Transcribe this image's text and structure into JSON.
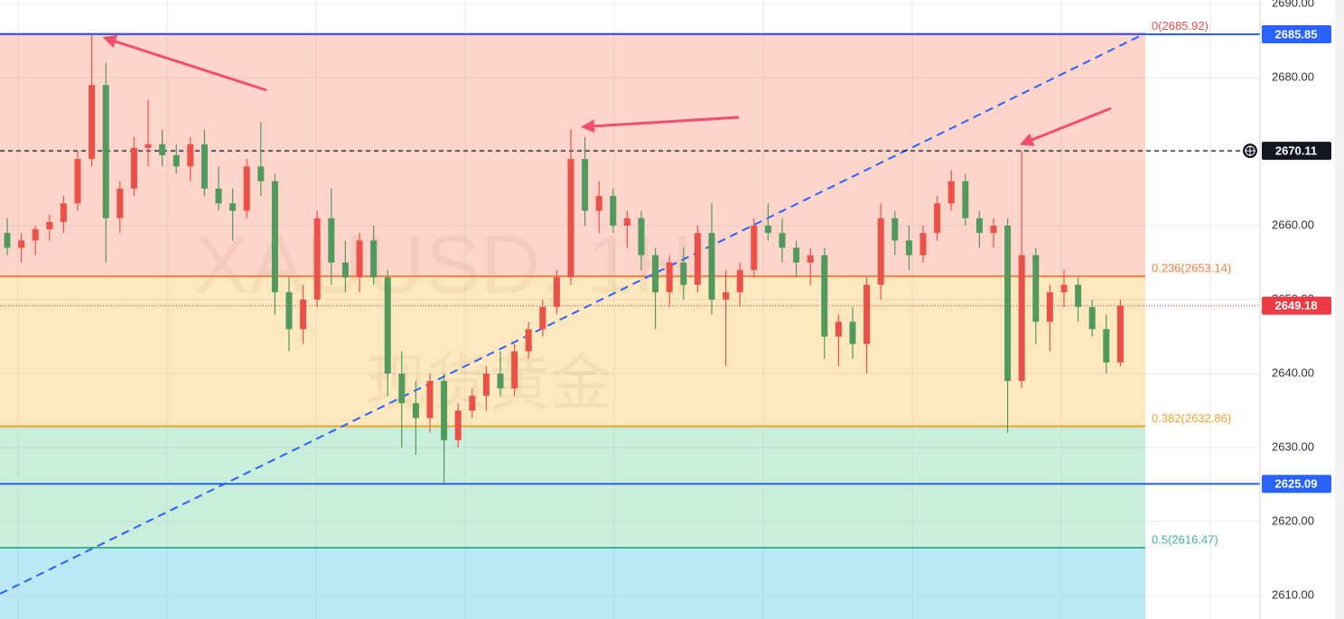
{
  "chart_data": {
    "type": "candlestick",
    "title": "XAUUSD, 1H",
    "subtitle": "现货黄金",
    "up_color": "#ec5147",
    "down_color": "#4f9a5c",
    "ylim": [
      2606.83,
      2690.49
    ],
    "yticks": [
      {
        "value": 2690,
        "label": "2690.00"
      },
      {
        "value": 2680,
        "label": "2680.00"
      },
      {
        "value": 2670,
        "label": "2670.00"
      },
      {
        "value": 2660,
        "label": "2660.00"
      },
      {
        "value": 2650,
        "label": "2650.00"
      },
      {
        "value": 2640,
        "label": "2640.00"
      },
      {
        "value": 2630,
        "label": "2630.00"
      },
      {
        "value": 2620,
        "label": "2620.00"
      },
      {
        "value": 2610,
        "label": "2610.00"
      }
    ],
    "grid": true,
    "fib_levels": [
      {
        "value": 2685.92,
        "label": "0(2685.92)",
        "color": "#e84c4c",
        "fill": "#fdd5cb"
      },
      {
        "value": 2653.14,
        "label": "0.236(2653.14)",
        "color": "#f07f3c",
        "fill": "#fee8bf"
      },
      {
        "value": 2632.86,
        "label": "0.382(2632.86)",
        "color": "#eaa52a",
        "fill": "#c9eedb"
      },
      {
        "value": 2616.47,
        "label": "0.5(2616.47)",
        "color": "#3fb58a",
        "fill": "#bae9f5"
      }
    ],
    "price_lines": [
      {
        "value": 2685.85,
        "color": "#2962ff",
        "style": "solid"
      },
      {
        "value": 2670.11,
        "color": "#131722",
        "style": "dashed"
      },
      {
        "value": 2625.09,
        "color": "#2962ff",
        "style": "solid"
      }
    ],
    "last_price": {
      "value": 2649.18,
      "color": "#ec3b45"
    },
    "trendline": {
      "values": [
        2610.24,
        2685.98
      ],
      "color": "#2962ff"
    },
    "candles": [
      [
        2659,
        2661,
        2656,
        2657
      ],
      [
        2657,
        2659,
        2655,
        2658
      ],
      [
        2658,
        2660,
        2656,
        2659.5
      ],
      [
        2659.5,
        2661.5,
        2658,
        2660.5
      ],
      [
        2660.5,
        2664,
        2659,
        2663
      ],
      [
        2663,
        2670,
        2662,
        2669
      ],
      [
        2669,
        2685.7,
        2668,
        2679
      ],
      [
        2679,
        2682,
        2655,
        2661
      ],
      [
        2661,
        2666,
        2659,
        2665
      ],
      [
        2665,
        2672,
        2664,
        2670.5
      ],
      [
        2670.5,
        2677,
        2668,
        2671
      ],
      [
        2671,
        2673,
        2668,
        2669.5
      ],
      [
        2669.5,
        2671,
        2667,
        2668
      ],
      [
        2668,
        2672,
        2666,
        2671
      ],
      [
        2671,
        2673,
        2664,
        2665
      ],
      [
        2665,
        2668,
        2662,
        2663
      ],
      [
        2663,
        2665,
        2658,
        2662
      ],
      [
        2662,
        2669,
        2661,
        2668
      ],
      [
        2668,
        2674,
        2664,
        2666
      ],
      [
        2666,
        2667,
        2648,
        2651
      ],
      [
        2651,
        2653,
        2643,
        2646
      ],
      [
        2646,
        2652,
        2644,
        2650
      ],
      [
        2650,
        2662,
        2649,
        2661
      ],
      [
        2661,
        2665,
        2652,
        2655
      ],
      [
        2655,
        2658,
        2651,
        2653
      ],
      [
        2653,
        2659,
        2651,
        2658
      ],
      [
        2658,
        2660,
        2652,
        2653
      ],
      [
        2653,
        2654,
        2637,
        2640
      ],
      [
        2640,
        2643,
        2630,
        2636
      ],
      [
        2636,
        2639,
        2629,
        2634
      ],
      [
        2634,
        2640,
        2632,
        2639
      ],
      [
        2639,
        2640,
        2625.2,
        2631
      ],
      [
        2631,
        2636,
        2630,
        2635
      ],
      [
        2635,
        2638,
        2634,
        2637
      ],
      [
        2637,
        2641,
        2635,
        2640
      ],
      [
        2640,
        2643,
        2637,
        2638
      ],
      [
        2638,
        2644,
        2637,
        2643
      ],
      [
        2643,
        2647,
        2642,
        2646
      ],
      [
        2646,
        2650,
        2645,
        2649
      ],
      [
        2649,
        2654,
        2648,
        2653
      ],
      [
        2653,
        2673,
        2652,
        2669
      ],
      [
        2669,
        2672,
        2660,
        2662
      ],
      [
        2662,
        2666,
        2659,
        2664
      ],
      [
        2664,
        2665,
        2659,
        2660
      ],
      [
        2660,
        2662,
        2657,
        2661
      ],
      [
        2661,
        2662,
        2654,
        2656
      ],
      [
        2656,
        2657,
        2646,
        2651
      ],
      [
        2651,
        2656,
        2649,
        2655
      ],
      [
        2655,
        2657,
        2650,
        2652
      ],
      [
        2652,
        2660,
        2651,
        2659
      ],
      [
        2659,
        2663,
        2648,
        2650
      ],
      [
        2650,
        2654,
        2641,
        2651
      ],
      [
        2651,
        2655,
        2649,
        2654
      ],
      [
        2654,
        2661,
        2653,
        2660
      ],
      [
        2660,
        2663,
        2658,
        2659
      ],
      [
        2659,
        2661,
        2655,
        2657
      ],
      [
        2657,
        2658,
        2653,
        2655
      ],
      [
        2655,
        2657,
        2652,
        2656
      ],
      [
        2656,
        2657,
        2642,
        2645
      ],
      [
        2645,
        2648,
        2641,
        2647
      ],
      [
        2647,
        2649,
        2642,
        2644
      ],
      [
        2644,
        2653,
        2640,
        2652
      ],
      [
        2652,
        2663,
        2650,
        2661
      ],
      [
        2661,
        2662,
        2656,
        2658
      ],
      [
        2658,
        2660,
        2654,
        2656
      ],
      [
        2656,
        2660,
        2655,
        2659
      ],
      [
        2659,
        2664,
        2658,
        2663
      ],
      [
        2663,
        2667.5,
        2662,
        2666
      ],
      [
        2666,
        2667,
        2660,
        2661
      ],
      [
        2661,
        2662,
        2657,
        2659
      ],
      [
        2659,
        2661,
        2657,
        2660
      ],
      [
        2660,
        2661,
        2632,
        2639
      ],
      [
        2639,
        2670.1,
        2638,
        2656
      ],
      [
        2656,
        2657,
        2644,
        2647
      ],
      [
        2647,
        2652,
        2643,
        2651
      ],
      [
        2651,
        2654,
        2649,
        2652
      ],
      [
        2652,
        2653,
        2647,
        2649
      ],
      [
        2649,
        2650,
        2645,
        2646
      ],
      [
        2646,
        2648,
        2640,
        2641.5
      ],
      [
        2641.5,
        2650,
        2641,
        2649.18
      ]
    ]
  }
}
